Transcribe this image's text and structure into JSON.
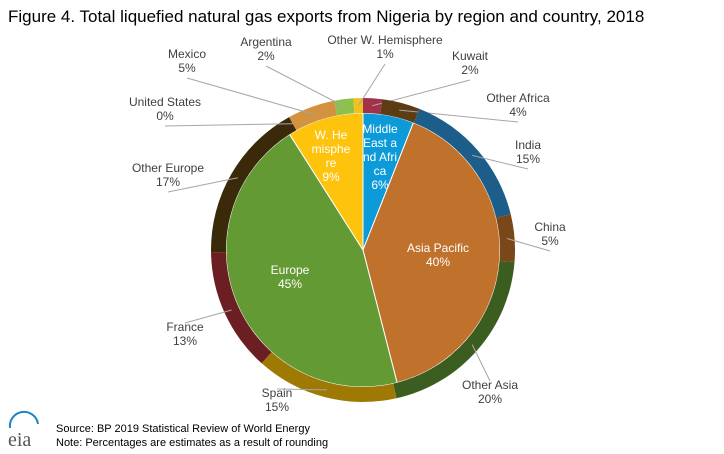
{
  "chart_data": {
    "type": "nested_pie",
    "title": "Figure 4. Total liquefied natural gas exports from Nigeria by region and country, 2018",
    "inner": {
      "labels": [
        "Middle East and Africa",
        "Asia Pacific",
        "Europe",
        "W. Hemisphere"
      ],
      "values": [
        6,
        40,
        45,
        9
      ],
      "value_labels": [
        "6%",
        "40%",
        "45%",
        "9%"
      ],
      "colors": [
        "#0d9ad8",
        "#c0712b",
        "#639a33",
        "#fdc30d"
      ]
    },
    "outer": {
      "labels": [
        "Kuwait",
        "Other Africa",
        "India",
        "China",
        "Other Asia",
        "Spain",
        "France",
        "Other Europe",
        "United States",
        "Mexico",
        "Argentina",
        "Other W. Hemisphere"
      ],
      "values": [
        2,
        4,
        15,
        5,
        20,
        15,
        13,
        17,
        0,
        5,
        2,
        1
      ],
      "value_labels": [
        "2%",
        "4%",
        "15%",
        "5%",
        "20%",
        "15%",
        "13%",
        "17%",
        "0%",
        "5%",
        "2%",
        "1%"
      ],
      "colors": [
        "#a23249",
        "#5c3c12",
        "#1d5d8a",
        "#7a4719",
        "#3b5e20",
        "#9e7a05",
        "#6b1f23",
        "#3a2a09",
        "#1d84c4",
        "#d3923f",
        "#8dc14c",
        "#f2c21a"
      ]
    },
    "source": "Source: BP 2019 Statistical Review of World Energy",
    "note": "Note: Percentages are estimates as a result of rounding",
    "logo": "eia"
  }
}
